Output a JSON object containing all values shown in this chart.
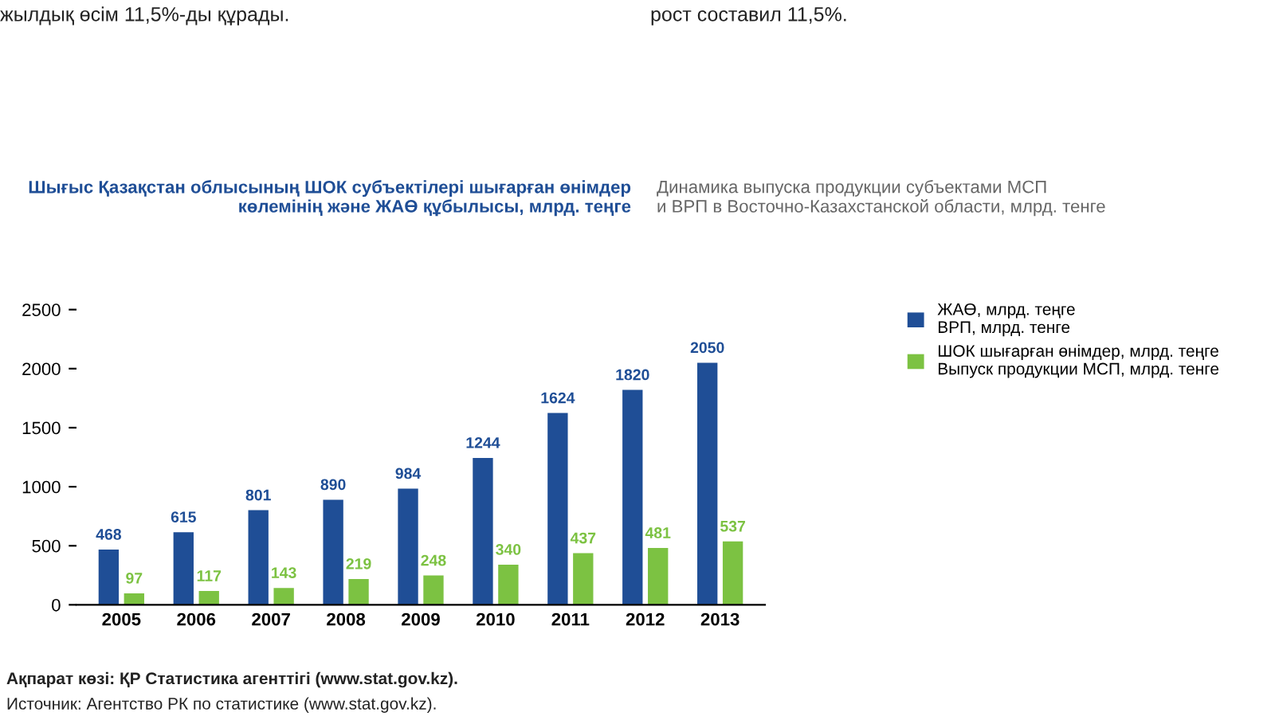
{
  "chart_data": {
    "type": "bar",
    "title": "Шығыс Қазақстан облысының ШОК субъектілері шығарған өнімдер\nкөлемінің және ЖАӨ құбылысы, млрд. теңге",
    "subtitle": "Динамика выпуска продукции субъектами МСП\nи ВРП в Восточно-Казахстанской области, млрд. тенге",
    "categories": [
      "2005",
      "2006",
      "2007",
      "2008",
      "2009",
      "2010",
      "2011",
      "2012",
      "2013"
    ],
    "series": [
      {
        "name": "ЖАӨ, млрд. теңге\nВРП, млрд. тенге",
        "color": "#1f4e96",
        "values": [
          468,
          615,
          801,
          890,
          984,
          1244,
          1624,
          1820,
          2050
        ]
      },
      {
        "name": "ШОК шығарған өнімдер, млрд. теңге\nВыпуск продукции МСП, млрд. тенге",
        "color": "#7cc242",
        "values": [
          97,
          117,
          143,
          219,
          248,
          340,
          437,
          481,
          537
        ]
      }
    ],
    "ylim": [
      0,
      2500
    ],
    "yticks": [
      0,
      500,
      1000,
      1500,
      2000,
      2500
    ],
    "grid": false,
    "legend": "right",
    "data_labels": true,
    "annotations": [
      "жылдық өсім 11,5%-ды құрады.",
      "рост составил 11,5%.",
      "Ақпарат көзі: ҚР Статистика агенттігі (www.stat.gov.kz).",
      "Источник: Агентство РК по статистике (www.stat.gov.kz)."
    ]
  }
}
